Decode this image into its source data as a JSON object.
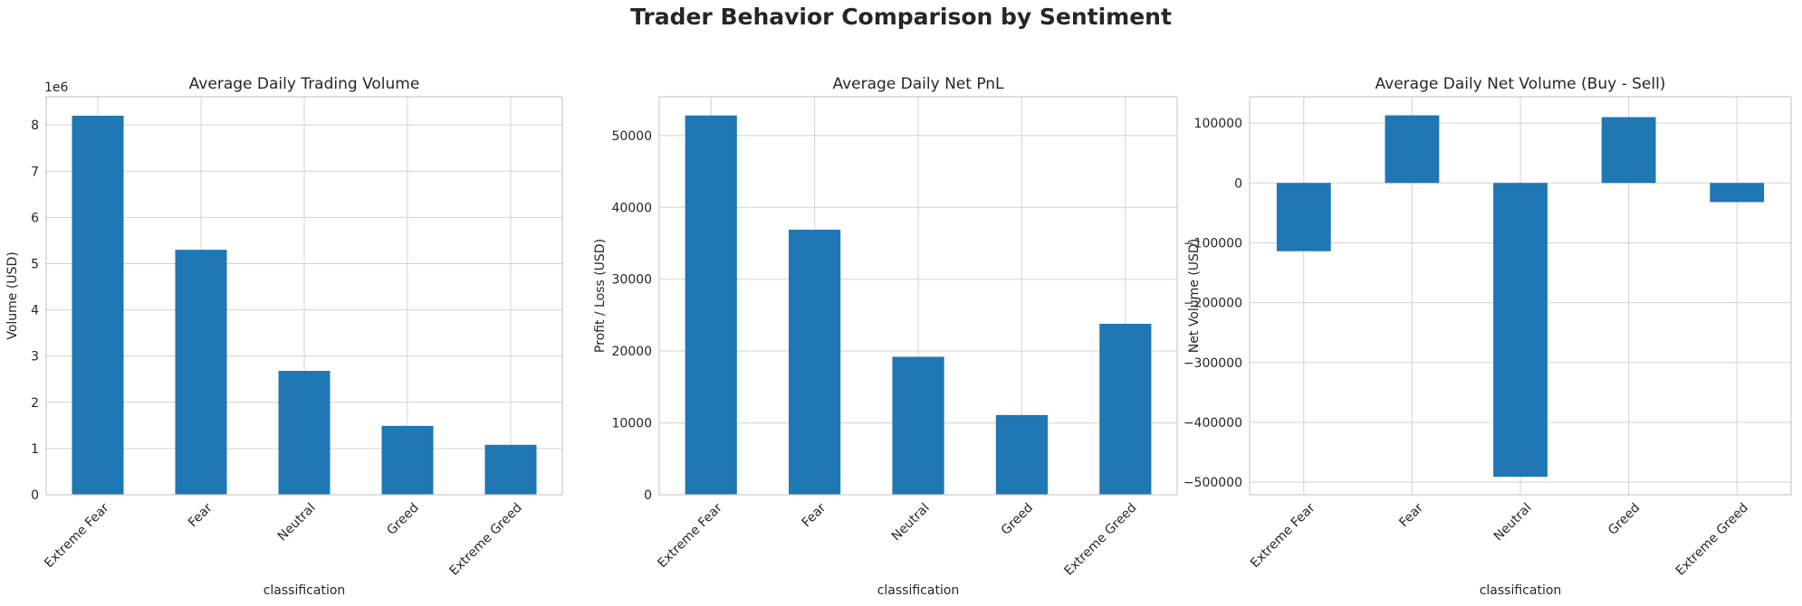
{
  "figure_title": "Trader Behavior Comparison by Sentiment",
  "colors": {
    "bar": "#1f77b4",
    "grid": "#d3d3d3",
    "frame": "#cccccc",
    "text": "#262626"
  },
  "chart_data": [
    {
      "type": "bar",
      "title": "Average Daily Trading Volume",
      "xlabel": "classification",
      "ylabel": "Volume (USD)",
      "offset_text": "1e6",
      "categories": [
        "Extreme Fear",
        "Fear",
        "Neutral",
        "Greed",
        "Extreme Greed"
      ],
      "values": [
        8200000,
        5300000,
        2680000,
        1490000,
        1080000
      ],
      "ylim": [
        0,
        8610000
      ],
      "yticks": [
        0,
        1000000,
        2000000,
        3000000,
        4000000,
        5000000,
        6000000,
        7000000,
        8000000
      ],
      "ytick_labels": [
        "0",
        "1",
        "2",
        "3",
        "4",
        "5",
        "6",
        "7",
        "8"
      ],
      "grid": true
    },
    {
      "type": "bar",
      "title": "Average Daily Net PnL",
      "xlabel": "classification",
      "ylabel": "Profit / Loss (USD)",
      "offset_text": "",
      "categories": [
        "Extreme Fear",
        "Fear",
        "Neutral",
        "Greed",
        "Extreme Greed"
      ],
      "values": [
        52800,
        36900,
        19200,
        11100,
        23800
      ],
      "ylim": [
        0,
        55400
      ],
      "yticks": [
        0,
        10000,
        20000,
        30000,
        40000,
        50000
      ],
      "ytick_labels": [
        "0",
        "10000",
        "20000",
        "30000",
        "40000",
        "50000"
      ],
      "grid": true
    },
    {
      "type": "bar",
      "title": "Average Daily Net Volume (Buy - Sell)",
      "xlabel": "classification",
      "ylabel": "Net Volume (USD)",
      "offset_text": "",
      "categories": [
        "Extreme Fear",
        "Fear",
        "Neutral",
        "Greed",
        "Extreme Greed"
      ],
      "values": [
        -114000,
        113000,
        -491000,
        110000,
        -32000
      ],
      "ylim": [
        -521000,
        144000
      ],
      "yticks": [
        -500000,
        -400000,
        -300000,
        -200000,
        -100000,
        0,
        100000
      ],
      "ytick_labels": [
        "−500000",
        "−400000",
        "−300000",
        "−200000",
        "−100000",
        "0",
        "100000"
      ],
      "grid": true
    }
  ]
}
